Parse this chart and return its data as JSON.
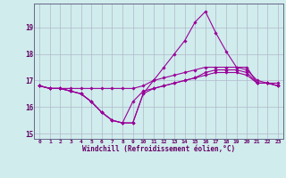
{
  "xlabel": "Windchill (Refroidissement éolien,°C)",
  "x": [
    0,
    1,
    2,
    3,
    4,
    5,
    6,
    7,
    8,
    9,
    10,
    11,
    12,
    13,
    14,
    15,
    16,
    17,
    18,
    19,
    20,
    21,
    22,
    23
  ],
  "curves": [
    [
      16.8,
      16.7,
      16.7,
      16.7,
      16.7,
      16.7,
      16.7,
      16.7,
      16.7,
      16.7,
      16.8,
      17.0,
      17.1,
      17.2,
      17.3,
      17.4,
      17.5,
      17.5,
      17.5,
      17.5,
      17.5,
      16.9,
      16.9,
      16.9
    ],
    [
      16.8,
      16.7,
      16.7,
      16.6,
      16.5,
      16.2,
      15.8,
      15.5,
      15.4,
      15.4,
      16.5,
      16.7,
      16.8,
      16.9,
      17.0,
      17.1,
      17.2,
      17.3,
      17.3,
      17.3,
      17.2,
      16.9,
      16.9,
      16.8
    ],
    [
      16.8,
      16.7,
      16.7,
      16.6,
      16.5,
      16.2,
      15.8,
      15.5,
      15.4,
      15.4,
      16.5,
      17.0,
      17.5,
      18.0,
      18.5,
      19.2,
      19.6,
      18.8,
      18.1,
      17.5,
      17.4,
      17.0,
      16.9,
      16.8
    ],
    [
      16.8,
      16.7,
      16.7,
      16.6,
      16.5,
      16.2,
      15.8,
      15.5,
      15.4,
      16.2,
      16.6,
      16.7,
      16.8,
      16.9,
      17.0,
      17.1,
      17.3,
      17.4,
      17.4,
      17.4,
      17.3,
      16.9,
      16.9,
      16.8
    ]
  ],
  "line_color": "#990099",
  "marker_color": "#990099",
  "bg_color": "#d0ecec",
  "grid_color": "#b0b8cc",
  "text_color": "#660066",
  "ylim": [
    14.8,
    19.9
  ],
  "yticks": [
    15,
    16,
    17,
    18,
    19
  ],
  "xlim": [
    -0.5,
    23.5
  ],
  "figsize": [
    3.2,
    2.0
  ],
  "dpi": 100
}
